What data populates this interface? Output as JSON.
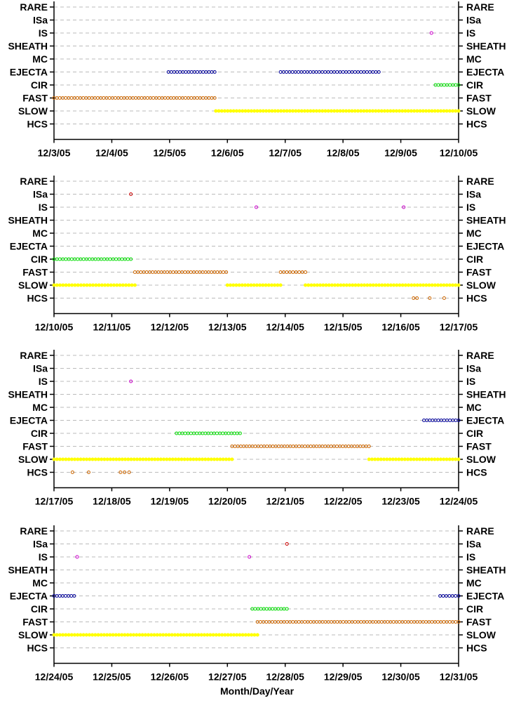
{
  "chart_data": [
    {
      "type": "scatter",
      "categories": [
        "RARE",
        "ISa",
        "IS",
        "SHEATH",
        "MC",
        "EJECTA",
        "CIR",
        "FAST",
        "SLOW",
        "HCS"
      ],
      "x_ticks": [
        "12/3/05",
        "12/4/05",
        "12/5/05",
        "12/6/05",
        "12/7/05",
        "12/8/05",
        "12/9/05",
        "12/10/05"
      ],
      "x_range": [
        0,
        7
      ],
      "grid": "dashed horizontal lines",
      "series": [
        {
          "category": "IS",
          "color": "#cc00cc",
          "marker": "circle",
          "segments": [
            [
              6.53,
              6.53
            ]
          ]
        },
        {
          "category": "EJECTA",
          "color": "#000099",
          "marker": "circle",
          "segments": [
            [
              1.98,
              2.78
            ],
            [
              3.92,
              5.62
            ]
          ]
        },
        {
          "category": "CIR",
          "color": "#00dd00",
          "marker": "circle",
          "segments": [
            [
              6.6,
              7.0
            ]
          ]
        },
        {
          "category": "FAST",
          "color": "#cc6600",
          "marker": "circle",
          "segments": [
            [
              0.0,
              2.78
            ]
          ]
        },
        {
          "category": "SLOW",
          "color": "#ffff00",
          "marker": "circle",
          "segments": [
            [
              2.8,
              7.0
            ]
          ]
        }
      ]
    },
    {
      "type": "scatter",
      "categories": [
        "RARE",
        "ISa",
        "IS",
        "SHEATH",
        "MC",
        "EJECTA",
        "CIR",
        "FAST",
        "SLOW",
        "HCS"
      ],
      "x_ticks": [
        "12/10/05",
        "12/11/05",
        "12/12/05",
        "12/13/05",
        "12/14/05",
        "12/15/05",
        "12/16/05",
        "12/17/05"
      ],
      "x_range": [
        0,
        7
      ],
      "grid": "dashed horizontal lines",
      "series": [
        {
          "category": "ISa",
          "color": "#cc0000",
          "marker": "circle",
          "segments": [
            [
              1.33,
              1.33
            ]
          ]
        },
        {
          "category": "IS",
          "color": "#cc00cc",
          "marker": "circle",
          "segments": [
            [
              3.5,
              3.5
            ],
            [
              6.05,
              6.05
            ]
          ]
        },
        {
          "category": "CIR",
          "color": "#00dd00",
          "marker": "circle",
          "segments": [
            [
              0.0,
              1.33
            ]
          ]
        },
        {
          "category": "FAST",
          "color": "#cc6600",
          "marker": "circle",
          "segments": [
            [
              1.4,
              2.98
            ],
            [
              3.92,
              4.35
            ]
          ]
        },
        {
          "category": "SLOW",
          "color": "#ffff00",
          "marker": "circle",
          "segments": [
            [
              0.0,
              1.4
            ],
            [
              3.0,
              3.92
            ],
            [
              4.35,
              7.0
            ]
          ]
        },
        {
          "category": "HCS",
          "color": "#cc6600",
          "marker": "circle",
          "segments": [
            [
              6.22,
              6.22
            ],
            [
              6.28,
              6.28
            ],
            [
              6.5,
              6.5
            ],
            [
              6.75,
              6.75
            ]
          ]
        }
      ]
    },
    {
      "type": "scatter",
      "categories": [
        "RARE",
        "ISa",
        "IS",
        "SHEATH",
        "MC",
        "EJECTA",
        "CIR",
        "FAST",
        "SLOW",
        "HCS"
      ],
      "x_ticks": [
        "12/17/05",
        "12/18/05",
        "12/19/05",
        "12/20/05",
        "12/21/05",
        "12/22/05",
        "12/23/05",
        "12/24/05"
      ],
      "x_range": [
        0,
        7
      ],
      "grid": "dashed horizontal lines",
      "series": [
        {
          "category": "IS",
          "color": "#cc00cc",
          "marker": "circle",
          "segments": [
            [
              1.33,
              1.33
            ]
          ]
        },
        {
          "category": "EJECTA",
          "color": "#000099",
          "marker": "circle",
          "segments": [
            [
              6.4,
              7.0
            ]
          ]
        },
        {
          "category": "CIR",
          "color": "#00dd00",
          "marker": "circle",
          "segments": [
            [
              2.12,
              3.22
            ]
          ]
        },
        {
          "category": "FAST",
          "color": "#cc6600",
          "marker": "circle",
          "segments": [
            [
              3.08,
              5.45
            ]
          ]
        },
        {
          "category": "SLOW",
          "color": "#ffff00",
          "marker": "circle",
          "segments": [
            [
              0.0,
              3.08
            ],
            [
              5.45,
              7.0
            ]
          ]
        },
        {
          "category": "HCS",
          "color": "#cc6600",
          "marker": "circle",
          "segments": [
            [
              0.32,
              0.32
            ],
            [
              0.6,
              0.6
            ],
            [
              1.15,
              1.15
            ],
            [
              1.22,
              1.22
            ],
            [
              1.3,
              1.3
            ]
          ]
        }
      ]
    },
    {
      "type": "scatter",
      "categories": [
        "RARE",
        "ISa",
        "IS",
        "SHEATH",
        "MC",
        "EJECTA",
        "CIR",
        "FAST",
        "SLOW",
        "HCS"
      ],
      "x_ticks": [
        "12/24/05",
        "12/25/05",
        "12/26/05",
        "12/27/05",
        "12/28/05",
        "12/29/05",
        "12/30/05",
        "12/31/05"
      ],
      "x_range": [
        0,
        7
      ],
      "grid": "dashed horizontal lines",
      "series": [
        {
          "category": "ISa",
          "color": "#cc0000",
          "marker": "circle",
          "segments": [
            [
              4.03,
              4.03
            ]
          ]
        },
        {
          "category": "IS",
          "color": "#cc00cc",
          "marker": "circle",
          "segments": [
            [
              0.4,
              0.4
            ],
            [
              3.38,
              3.38
            ]
          ]
        },
        {
          "category": "EJECTA",
          "color": "#000099",
          "marker": "circle",
          "segments": [
            [
              0.0,
              0.35
            ],
            [
              6.68,
              7.0
            ]
          ]
        },
        {
          "category": "CIR",
          "color": "#00dd00",
          "marker": "circle",
          "segments": [
            [
              3.43,
              4.03
            ]
          ]
        },
        {
          "category": "FAST",
          "color": "#cc6600",
          "marker": "circle",
          "segments": [
            [
              3.52,
              7.0
            ]
          ]
        },
        {
          "category": "SLOW",
          "color": "#ffff00",
          "marker": "circle",
          "segments": [
            [
              0.0,
              3.52
            ]
          ]
        }
      ]
    }
  ],
  "xlabel": "Month/Day/Year"
}
